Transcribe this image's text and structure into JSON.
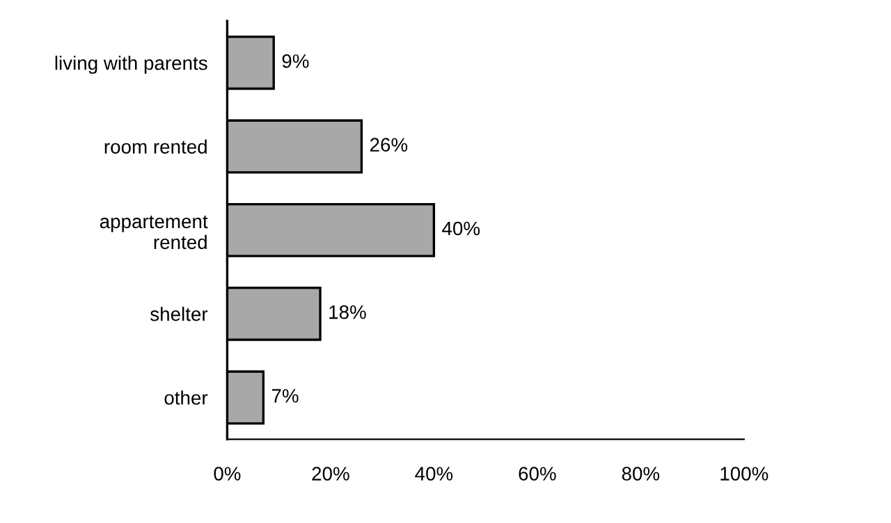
{
  "chart_data": {
    "type": "bar",
    "orientation": "horizontal",
    "categories": [
      "living with parents",
      "room rented",
      "appartement\nrented",
      "shelter",
      "other"
    ],
    "values": [
      9,
      26,
      40,
      18,
      7
    ],
    "value_labels": [
      "9%",
      "26%",
      "40%",
      "18%",
      "7%"
    ],
    "color": "#a8a8a8",
    "xlim": [
      0,
      100
    ],
    "xticks": [
      {
        "value": 0,
        "label": "0%"
      },
      {
        "value": 20,
        "label": "20%"
      },
      {
        "value": 40,
        "label": "40%"
      },
      {
        "value": 60,
        "label": "60%"
      },
      {
        "value": 80,
        "label": "80%"
      },
      {
        "value": 100,
        "label": "100%"
      }
    ],
    "grid": false,
    "legend": false
  }
}
